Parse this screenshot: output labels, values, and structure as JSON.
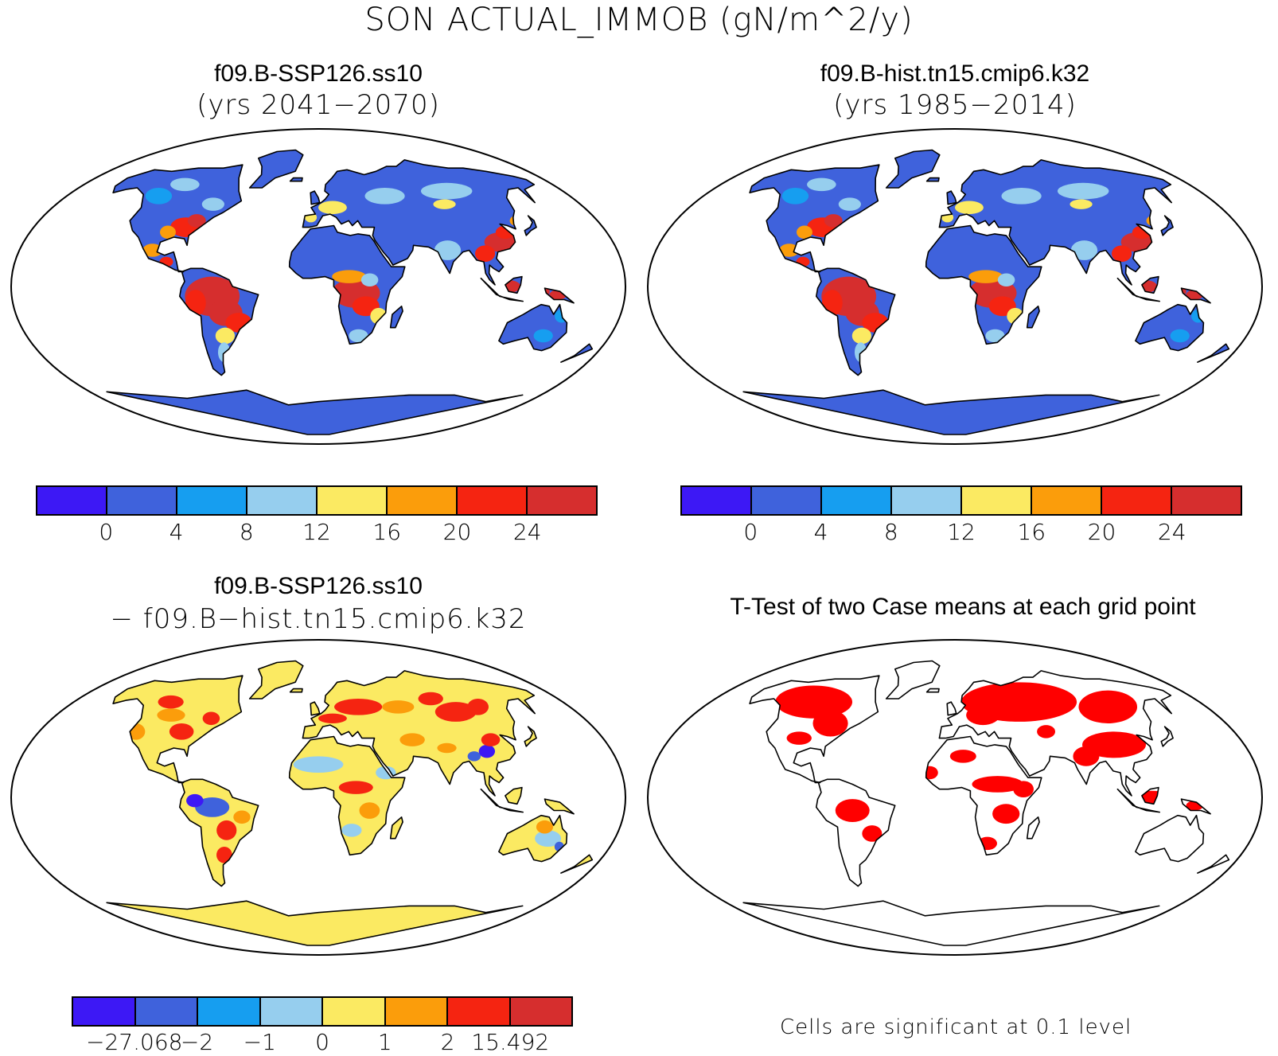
{
  "figure_title": "SON ACTUAL_IMMOB (gN/m^2/y)",
  "panels": {
    "top_left": {
      "title": "f09.B-SSP126.ss10",
      "subtitle": "(yrs 2041−2070)"
    },
    "top_right": {
      "title": "f09.B-hist.tn15.cmip6.k32",
      "subtitle": "(yrs 1985−2014)"
    },
    "bottom_left": {
      "title": "f09.B-SSP126.ss10",
      "subtitle": "− f09.B−hist.tn15.cmip6.k32"
    },
    "bottom_right": {
      "title": "T-Test of two Case means at each grid point",
      "note": "Cells are significant at 0.1 level"
    }
  },
  "colorbars": {
    "absolute": {
      "colors": [
        "#3d18f5",
        "#3f62dc",
        "#169ef0",
        "#96ceee",
        "#fbea62",
        "#fb9d0b",
        "#f52411",
        "#d62e2e"
      ],
      "labels": [
        "0",
        "4",
        "8",
        "12",
        "16",
        "20",
        "24"
      ]
    },
    "difference": {
      "colors": [
        "#3d18f5",
        "#3f62dc",
        "#169ef0",
        "#96ceee",
        "#fbea62",
        "#fb9d0b",
        "#f52411",
        "#d62e2e"
      ],
      "labels": [
        "−27.068",
        "−2",
        "−1",
        "0",
        "1",
        "2",
        "15.492"
      ]
    }
  },
  "map_fill": {
    "ocean": "#ffffff",
    "land_base_abs": "#3f62dc",
    "land_base_diff": "#fbea62",
    "significant": "#ff0000"
  }
}
